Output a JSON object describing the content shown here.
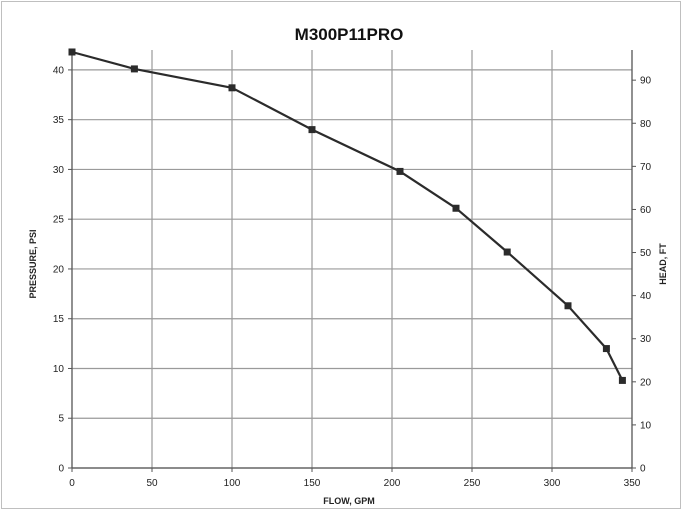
{
  "chart_data": {
    "type": "line",
    "title": "M300P11PRO",
    "xlabel": "FLOW, GPM",
    "ylabel": "PRESSURE, PSI",
    "y2label": "HEAD, FT",
    "xlim": [
      0,
      350
    ],
    "ylim": [
      0,
      42
    ],
    "y2lim": [
      0,
      97
    ],
    "x_ticks": [
      0,
      50,
      100,
      150,
      200,
      250,
      300,
      350
    ],
    "y_ticks": [
      0,
      5,
      10,
      15,
      20,
      25,
      30,
      35,
      40
    ],
    "y2_ticks": [
      0,
      10,
      20,
      30,
      40,
      50,
      60,
      70,
      80,
      90
    ],
    "grid": true,
    "series": [
      {
        "x": [
          0,
          39,
          100,
          150,
          205,
          240,
          272,
          310,
          334,
          344
        ],
        "y": [
          41.8,
          40.1,
          38.2,
          34.0,
          29.8,
          26.1,
          21.7,
          16.3,
          12.0,
          8.8
        ]
      }
    ],
    "colors": {
      "line": "#2b2b2b",
      "marker": "#2b2b2b",
      "grid": "#9a9a9a",
      "axis": "#555555",
      "border": "#bfbfbf"
    }
  }
}
